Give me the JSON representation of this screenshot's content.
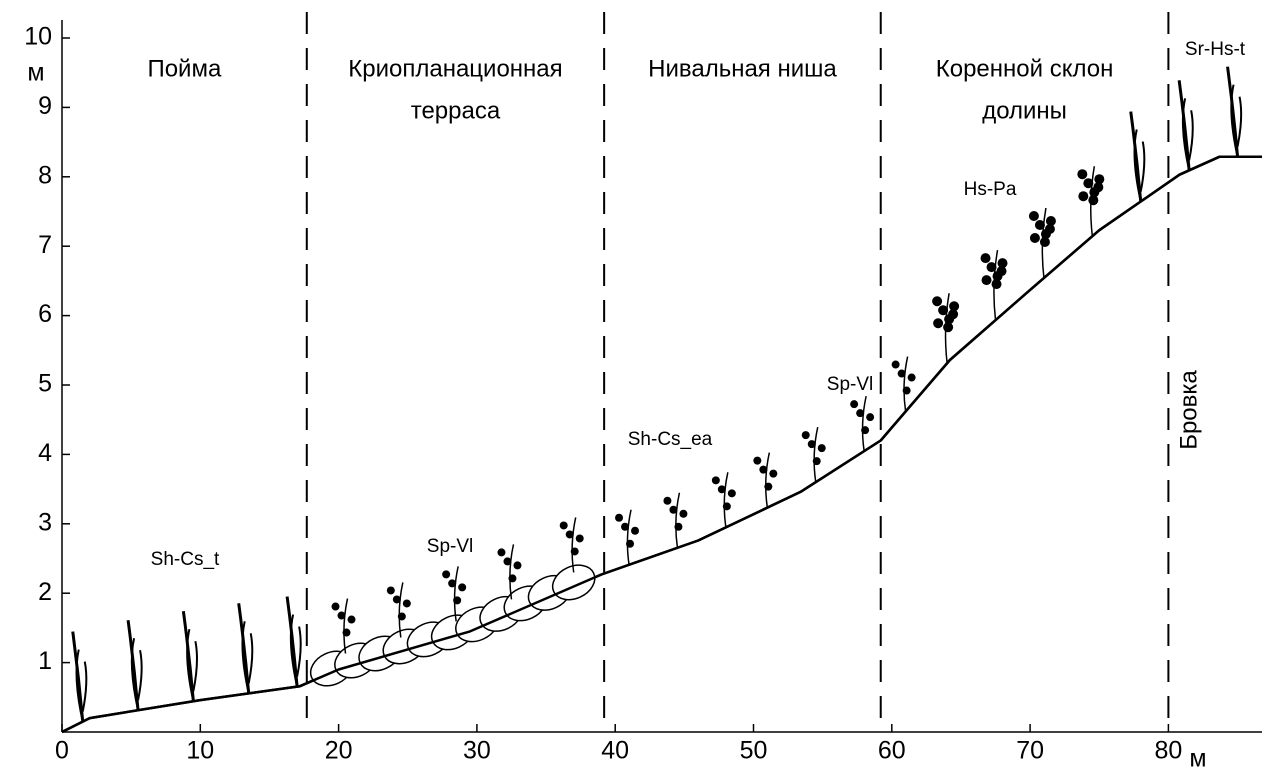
{
  "chart_data": {
    "type": "line",
    "x": [
      0,
      2,
      10,
      17.2,
      20,
      29.5,
      39,
      46,
      53.4,
      59.2,
      64.2,
      70,
      75,
      80.8,
      83.7,
      86.8
    ],
    "values": [
      0,
      0.2,
      0.46,
      0.66,
      0.9,
      1.45,
      2.27,
      2.76,
      3.46,
      4.2,
      5.36,
      6.37,
      7.23,
      8.03,
      8.29,
      8.29
    ],
    "color": "#000000",
    "xlim": [
      0,
      86.8
    ],
    "ylim": [
      0,
      10.5
    ],
    "xticks": [
      0,
      10,
      20,
      30,
      40,
      50,
      60,
      70,
      80
    ],
    "yticks": [
      1,
      2,
      3,
      4,
      5,
      6,
      7,
      8,
      9,
      10
    ],
    "xlabel": "м",
    "ylabel": "м",
    "boundaries": [
      17.7,
      39.2,
      59.2,
      80
    ],
    "zones": [
      [
        "Пойма"
      ],
      [
        "Криопланационная",
        "терраса"
      ],
      [
        "Нивальная ниша"
      ],
      [
        "Коренной склон",
        "долины"
      ]
    ],
    "annotations": [
      "Sh-Cs_t",
      "Sp-Vl",
      "Sh-Cs_ea",
      "Sp-Vl",
      "Hs-Pa",
      "Sr-Hs-t",
      "Бровка"
    ]
  }
}
